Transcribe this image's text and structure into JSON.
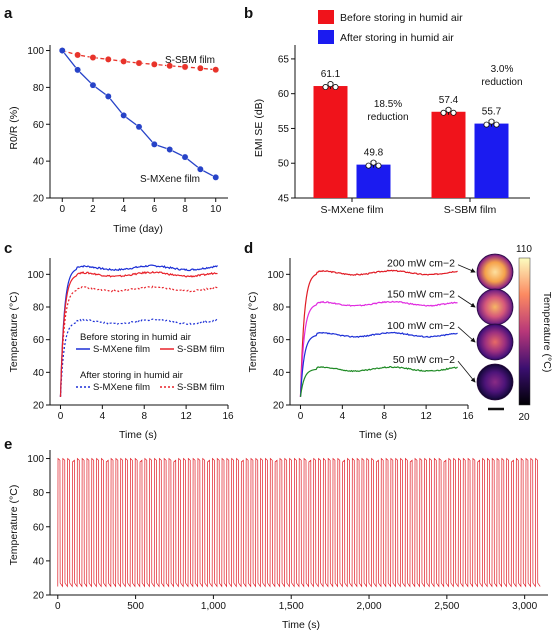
{
  "panels": {
    "a": {
      "label": "a",
      "chart_data": {
        "type": "line",
        "xlabel": "Time (day)",
        "ylabel": "R0/R (%)",
        "xlim": [
          -0.8,
          10.8
        ],
        "ylim": [
          20,
          103
        ],
        "xticks": [
          0,
          2,
          4,
          6,
          8,
          10
        ],
        "yticks": [
          20,
          40,
          60,
          80,
          100
        ],
        "grid": false,
        "series": [
          {
            "name": "S-SBM film",
            "color": "#e8332a",
            "dashed": true,
            "x": [
              0,
              1,
              2,
              3,
              4,
              5,
              6,
              7,
              8,
              9,
              10
            ],
            "y": [
              100,
              97.6,
              96.2,
              95.2,
              94.1,
              93.2,
              92.5,
              91.7,
              91.1,
              90.4,
              89.6
            ]
          },
          {
            "name": "S-MXene film",
            "color": "#2743c8",
            "dashed": false,
            "x": [
              0,
              1,
              2,
              3,
              4,
              5,
              6,
              7,
              8,
              9,
              10
            ],
            "y": [
              100,
              89.5,
              81.2,
              75.1,
              64.8,
              58.6,
              49.1,
              46.3,
              42.2,
              35.6,
              31.2
            ]
          }
        ]
      }
    },
    "b": {
      "label": "b",
      "chart_data": {
        "type": "bar",
        "categories": [
          "S-MXene film",
          "S-SBM film"
        ],
        "ylabel": "EMI SE (dB)",
        "ylim": [
          45,
          67
        ],
        "yticks": [
          45,
          50,
          55,
          60,
          65
        ],
        "legend_position": "top",
        "series": [
          {
            "name": "Before storing in humid air",
            "color": "#f0131b",
            "values": [
              61.1,
              57.4
            ],
            "labels": [
              "61.1",
              "57.4"
            ]
          },
          {
            "name": "After storing in humid air",
            "color": "#1b1bf0",
            "values": [
              49.8,
              55.7
            ],
            "labels": [
              "49.8",
              "55.7"
            ]
          }
        ],
        "annotations": [
          {
            "line1": "18.5%",
            "line2": "reduction"
          },
          {
            "line1": "3.0%",
            "line2": "reduction"
          }
        ]
      }
    },
    "c": {
      "label": "c",
      "chart_data": {
        "type": "line",
        "xlabel": "Time (s)",
        "ylabel": "Temperature (°C)",
        "xlim": [
          -1,
          16
        ],
        "ylim": [
          20,
          110
        ],
        "xticks": [
          0,
          4,
          8,
          12,
          16
        ],
        "yticks": [
          20,
          40,
          60,
          80,
          100
        ],
        "legend_title_before": "Before storing in humid air",
        "legend_title_after": "After storing in humid air",
        "series": [
          {
            "name": "S-MXene film",
            "group": "before",
            "color": "#1c2fd6",
            "style": "solid",
            "start": 25,
            "plateau": 104
          },
          {
            "name": "S-SBM film",
            "group": "before",
            "color": "#e8222a",
            "style": "solid",
            "start": 25,
            "plateau": 100
          },
          {
            "name": "S-MXene film",
            "group": "after",
            "color": "#1c2fd6",
            "style": "dotted",
            "start": 25,
            "plateau": 71
          },
          {
            "name": "S-SBM film",
            "group": "after",
            "color": "#e8222a",
            "style": "dotted",
            "start": 25,
            "plateau": 91
          }
        ]
      }
    },
    "d": {
      "label": "d",
      "chart_data": {
        "type": "line",
        "xlabel": "Time (s)",
        "ylabel": "Temperature (°C)",
        "xlim": [
          -1,
          16
        ],
        "ylim": [
          20,
          110
        ],
        "xticks": [
          0,
          4,
          8,
          12,
          16
        ],
        "yticks": [
          20,
          40,
          60,
          80,
          100
        ],
        "series": [
          {
            "name": "200 mW cm−2",
            "color": "#e01b24",
            "start": 25,
            "plateau": 101
          },
          {
            "name": "150 mW cm−2",
            "color": "#e02be0",
            "start": 25,
            "plateau": 82
          },
          {
            "name": "100 mW cm−2",
            "color": "#1c2fd6",
            "start": 25,
            "plateau": 63
          },
          {
            "name": "50 mW cm−2",
            "color": "#1e8a24",
            "start": 25,
            "plateau": 42
          }
        ],
        "colorbar": {
          "max": "110",
          "min": "20",
          "label": "Temperature (°C)"
        }
      }
    },
    "e": {
      "label": "e",
      "chart_data": {
        "type": "line",
        "xlabel": "Time (s)",
        "ylabel": "Temperature (°C)",
        "xlim": [
          -50,
          3150
        ],
        "ylim": [
          20,
          105
        ],
        "xticks": [
          0,
          500,
          1000,
          1500,
          2000,
          2500,
          3000
        ],
        "xtick_labels": [
          "0",
          "500",
          "1,000",
          "1,500",
          "2,000",
          "2,500",
          "3,000"
        ],
        "yticks": [
          20,
          40,
          60,
          80,
          100
        ],
        "series": [
          {
            "name": "",
            "color": "#e01b24",
            "high": 100,
            "low": 25,
            "cycles": 100,
            "period_s": 31
          }
        ]
      }
    }
  }
}
